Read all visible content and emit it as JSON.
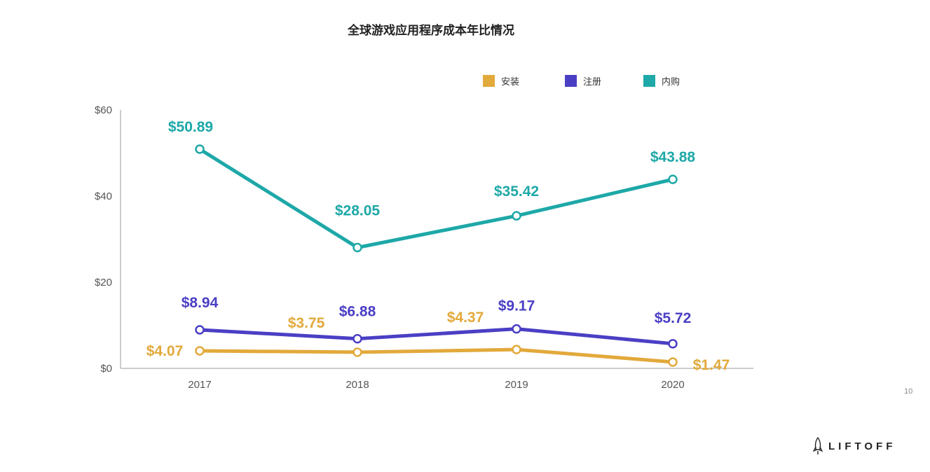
{
  "colors": {
    "install": "#E2A93B",
    "register": "#4A3FC4",
    "purchase": "#1EA8A8",
    "axis": "#BBBBBB"
  },
  "page_number": "10",
  "brand": "LIFTOFF",
  "brand_icon": "rocket-icon",
  "chart_data": {
    "type": "line",
    "title": "全球游戏应用程序成本年比情况",
    "x": [
      "2017",
      "2018",
      "2019",
      "2020"
    ],
    "ylim": [
      0,
      60
    ],
    "yticks": [
      0,
      20,
      40,
      60
    ],
    "ytick_labels": [
      "$0",
      "$20",
      "$40",
      "$60"
    ],
    "legend_position": "top-right",
    "grid": false,
    "series": [
      {
        "key": "install",
        "name": "安装",
        "values": [
          4.07,
          3.75,
          4.37,
          1.47
        ],
        "labels": [
          "$4.07",
          "$3.75",
          "$4.37",
          "$1.47"
        ]
      },
      {
        "key": "register",
        "name": "注册",
        "values": [
          8.94,
          6.88,
          9.17,
          5.72
        ],
        "labels": [
          "$8.94",
          "$6.88",
          "$9.17",
          "$5.72"
        ]
      },
      {
        "key": "purchase",
        "name": "内购",
        "values": [
          50.89,
          28.05,
          35.42,
          43.88
        ],
        "labels": [
          "$50.89",
          "$28.05",
          "$35.42",
          "$43.88"
        ]
      }
    ]
  }
}
